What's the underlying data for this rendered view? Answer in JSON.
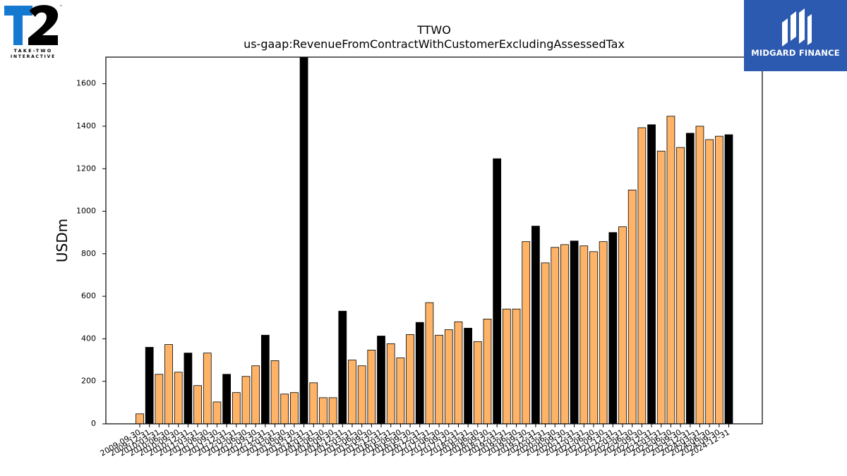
{
  "logos": {
    "left": {
      "line1": "TAKE-TWO",
      "line2": "INTERACTIVE",
      "tm": "™",
      "mark": "T2"
    },
    "right": {
      "name": "MIDGARD FINANCE",
      "color": "#2c5ab0"
    }
  },
  "colors": {
    "bar_highlight": "#000000",
    "bar_default": "#ffb366",
    "bar_edge": "#000000"
  },
  "chart_data": {
    "type": "bar",
    "title": "TTWO",
    "subtitle": "us-gaap:RevenueFromContractWithCustomerExcludingAssessedTax",
    "ylabel": "USDm",
    "xlabel": "",
    "ylim": [
      0,
      1725
    ],
    "yticks": [
      0,
      200,
      400,
      600,
      800,
      1000,
      1200,
      1400,
      1600
    ],
    "grid": false,
    "categories": [
      "2009-09-30",
      "2009-12-31",
      "2010-03-31",
      "2010-06-30",
      "2010-09-30",
      "2010-12-31",
      "2011-03-31",
      "2011-06-30",
      "2011-09-30",
      "2011-12-31",
      "2012-03-31",
      "2012-06-30",
      "2012-09-30",
      "2012-12-31",
      "2013-03-31",
      "2013-06-30",
      "2013-09-30",
      "2013-12-31",
      "2014-03-31",
      "2014-06-30",
      "2014-09-30",
      "2014-12-31",
      "2015-03-31",
      "2015-06-30",
      "2015-09-30",
      "2015-12-31",
      "2016-03-31",
      "2016-06-30",
      "2016-09-30",
      "2016-12-31",
      "2017-03-31",
      "2017-06-30",
      "2017-09-30",
      "2017-12-31",
      "2018-03-31",
      "2018-06-30",
      "2018-09-30",
      "2018-12-31",
      "2019-03-31",
      "2019-06-30",
      "2019-09-30",
      "2019-12-31",
      "2020-03-31",
      "2020-06-30",
      "2020-09-30",
      "2020-12-31",
      "2021-03-31",
      "2021-06-30",
      "2021-09-30",
      "2021-12-31",
      "2022-03-31",
      "2022-06-30",
      "2022-09-30",
      "2022-12-31",
      "2023-03-31",
      "2023-06-30",
      "2023-09-30",
      "2023-12-31",
      "2024-03-31",
      "2024-06-30",
      "2024-09-30",
      "2024-12-31"
    ],
    "visible_tick_labels": [
      "2009-09-30",
      "2009-12-31",
      "2010-03-31",
      "2010-06-30",
      "2010-09-30",
      "2010-12-31",
      "2011-03-31",
      "2011-06-30",
      "2011-09-30",
      "2011-12-31",
      "2012-03-31",
      "2012-06-30",
      "2012-09-30",
      "2012-12-31",
      "2013-03-31",
      "2013-06-30",
      "2013-09-30",
      "2013-12-31",
      "2014-03-31",
      "2014-06-30",
      "2014-09-30",
      "2014-12-31",
      "2015-03-31",
      "2015-06-30",
      "2015-09-30",
      "2015-12-31",
      "2016-03-31",
      "2016-06-30",
      "2016-09-30",
      "2016-12-31",
      "2017-03-31",
      "2017-06-30",
      "2017-09-30",
      "2017-12-31",
      "2018-03-31",
      "2018-06-30",
      "2018-09-30",
      "2018-12-31",
      "2019-03-31",
      "2019-06-30",
      "2019-09-30",
      "2019-12-31",
      "2020-03-31",
      "2020-06-30",
      "2020-09-30",
      "2020-12-31",
      "2021-03-31",
      "2021-06-30",
      "2021-09-30",
      "2021-12-31",
      "2022-03-31",
      "2022-06-30",
      "2022-09-30",
      "2022-12-31",
      "2023-03-31",
      "2023-06-30",
      "2023-09-30",
      "2023-12-31",
      "2024-03-31",
      "2024-06-30",
      "2024-09-30",
      "2024-12-31"
    ],
    "values": [
      47,
      360,
      233,
      373,
      243,
      333,
      180,
      333,
      103,
      233,
      147,
      223,
      273,
      417,
      297,
      140,
      147,
      1725,
      193,
      123,
      123,
      530,
      300,
      273,
      347,
      413,
      377,
      310,
      420,
      477,
      570,
      417,
      443,
      480,
      450,
      387,
      493,
      1247,
      540,
      540,
      857,
      930,
      757,
      830,
      843,
      860,
      837,
      810,
      857,
      900,
      927,
      1100,
      1393,
      1407,
      1283,
      1447,
      1300,
      1367,
      1400,
      1337,
      1353,
      1360
    ],
    "highlight": [
      false,
      true,
      false,
      false,
      false,
      true,
      false,
      false,
      false,
      true,
      false,
      false,
      false,
      true,
      false,
      false,
      false,
      true,
      false,
      false,
      false,
      true,
      false,
      false,
      false,
      true,
      false,
      false,
      false,
      true,
      false,
      false,
      false,
      false,
      true,
      false,
      false,
      true,
      false,
      false,
      false,
      true,
      false,
      false,
      false,
      true,
      false,
      false,
      false,
      true,
      false,
      false,
      false,
      true,
      false,
      false,
      false,
      true,
      false,
      false,
      false,
      true
    ]
  }
}
